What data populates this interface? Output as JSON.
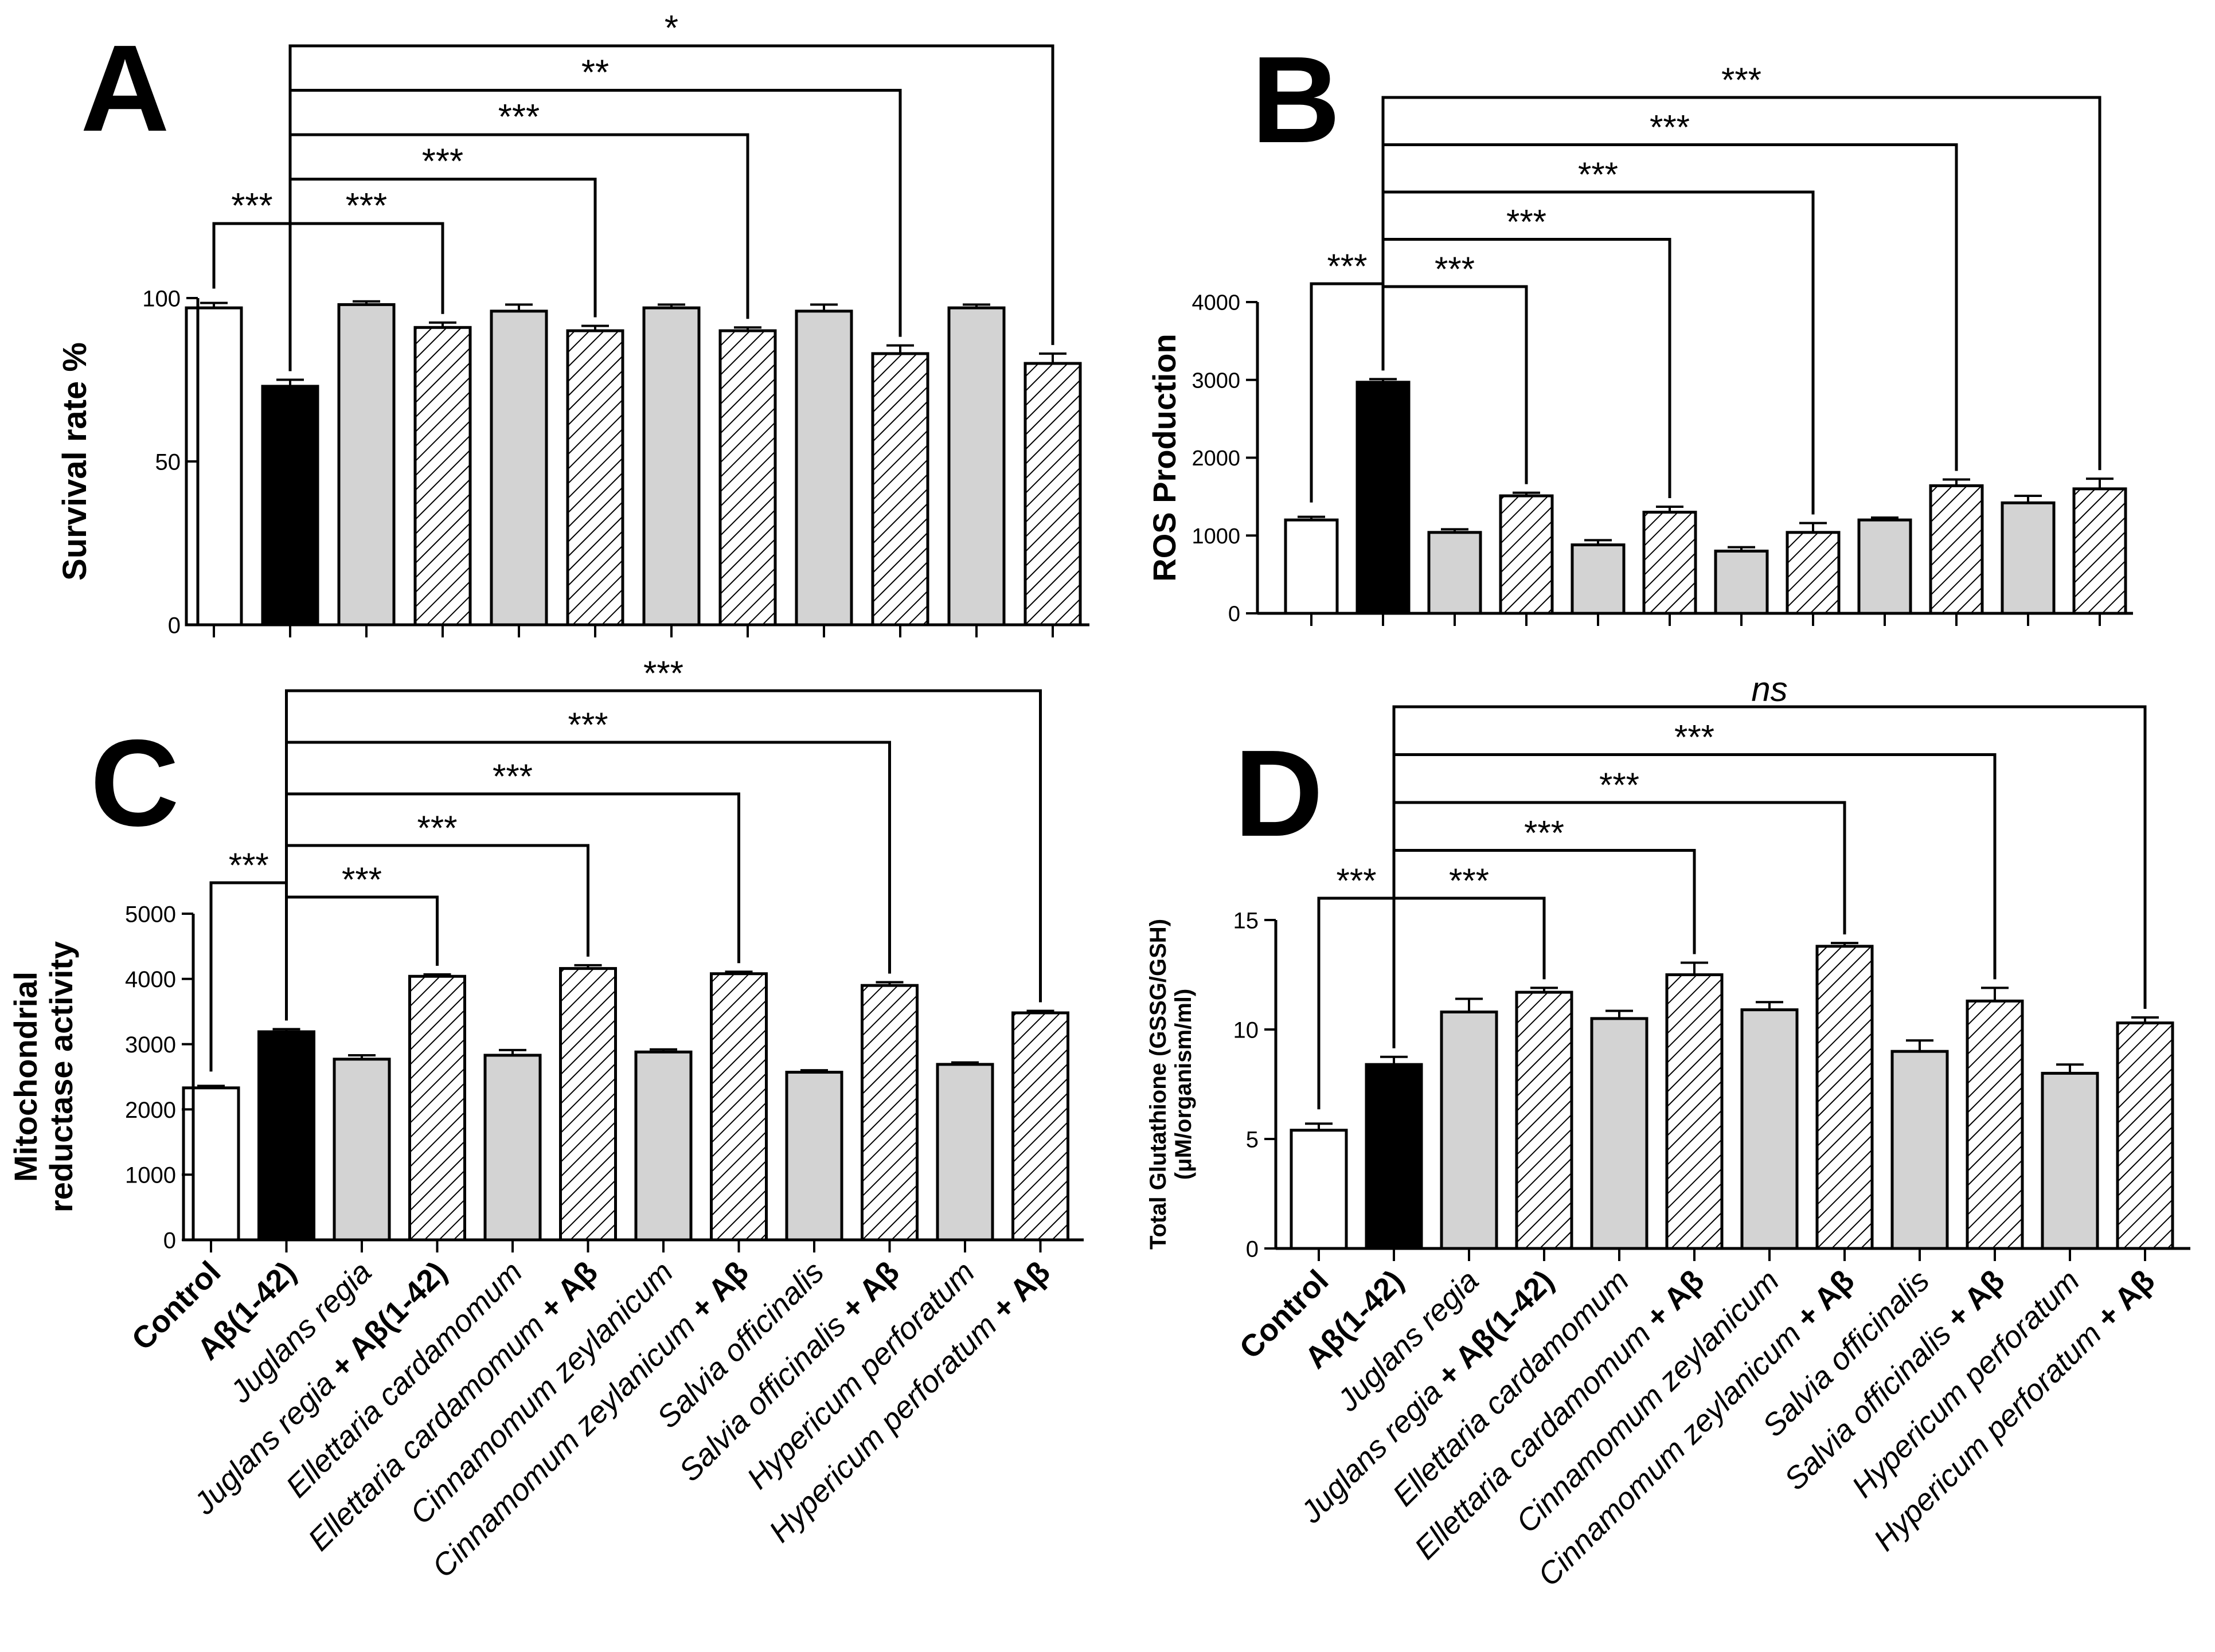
{
  "figure": {
    "categories": [
      {
        "label": "Control",
        "parts": [
          {
            "t": "Control",
            "b": true,
            "i": false
          }
        ]
      },
      {
        "label": "Aβ(1-42)",
        "parts": [
          {
            "t": "Aβ(1-42)",
            "b": true,
            "i": false
          }
        ]
      },
      {
        "label": "Juglans regia",
        "parts": [
          {
            "t": "Juglans regia",
            "b": false,
            "i": true
          }
        ]
      },
      {
        "label": "Juglans regia + Aβ(1-42)",
        "parts": [
          {
            "t": "Juglans regia",
            "b": false,
            "i": true
          },
          {
            "t": " + Aβ(1-42)",
            "b": true,
            "i": false
          }
        ]
      },
      {
        "label": "Ellettaria cardamomum",
        "parts": [
          {
            "t": "Ellettaria cardamomum",
            "b": false,
            "i": true
          }
        ]
      },
      {
        "label": "Ellettaria cardamomum + Aβ",
        "parts": [
          {
            "t": "Ellettaria cardamomum",
            "b": false,
            "i": true
          },
          {
            "t": " + Aβ",
            "b": true,
            "i": false
          }
        ]
      },
      {
        "label": "Cinnamomum zeylanicum",
        "parts": [
          {
            "t": "Cinnamomum zeylanicum",
            "b": false,
            "i": true
          }
        ]
      },
      {
        "label": "Cinnamomum zeylanicum + Aβ",
        "parts": [
          {
            "t": "Cinnamomum zeylanicum",
            "b": false,
            "i": true
          },
          {
            "t": " + Aβ",
            "b": true,
            "i": false
          }
        ]
      },
      {
        "label": "Salvia officinalis",
        "parts": [
          {
            "t": "Salvia officinalis",
            "b": false,
            "i": true
          }
        ]
      },
      {
        "label": "Salvia officinalis + Aβ",
        "parts": [
          {
            "t": "Salvia officinalis",
            "b": false,
            "i": true
          },
          {
            "t": " + Aβ",
            "b": true,
            "i": false
          }
        ]
      },
      {
        "label": "Hypericum perforatum",
        "parts": [
          {
            "t": "Hypericum perforatum",
            "b": false,
            "i": true
          }
        ]
      },
      {
        "label": "Hypericum perforatum + Aβ",
        "parts": [
          {
            "t": "Hypericum perforatum",
            "b": false,
            "i": true
          },
          {
            "t": " + Aβ",
            "b": true,
            "i": false
          }
        ]
      }
    ],
    "bar_styles": [
      "white",
      "black",
      "gray",
      "hatched",
      "gray",
      "hatched",
      "gray",
      "hatched",
      "gray",
      "hatched",
      "gray",
      "hatched"
    ],
    "colors": {
      "axis": "#000000",
      "black_bar": "#000000",
      "white_bar": "#ffffff",
      "gray_bar": "#d3d3d3"
    }
  },
  "chart_data": [
    {
      "id": "A",
      "panel_letter": "A",
      "type": "bar",
      "ylabel": "Survival rate %",
      "ylabel_lines": [
        "Survival rate %"
      ],
      "ylim": [
        0,
        100
      ],
      "yticks": [
        0,
        50,
        100
      ],
      "show_category_labels": false,
      "values": [
        97,
        73,
        98,
        91,
        96,
        90,
        97,
        90,
        96,
        83,
        97,
        80
      ],
      "errors": [
        1.5,
        2.0,
        1.0,
        1.5,
        2.0,
        1.5,
        1.0,
        1.0,
        2.0,
        2.5,
        1.0,
        3.0
      ],
      "brackets": [
        {
          "from": 0,
          "to": 1,
          "label": "***",
          "italic": false
        },
        {
          "from": 1,
          "to": 3,
          "label": "***",
          "italic": false
        },
        {
          "from": 1,
          "to": 5,
          "label": "***",
          "italic": false
        },
        {
          "from": 1,
          "to": 7,
          "label": "***",
          "italic": false
        },
        {
          "from": 1,
          "to": 9,
          "label": "**",
          "italic": false
        },
        {
          "from": 1,
          "to": 11,
          "label": "*",
          "italic": false
        }
      ]
    },
    {
      "id": "B",
      "panel_letter": "B",
      "type": "bar",
      "ylabel": "ROS Production",
      "ylabel_lines": [
        "ROS Production"
      ],
      "ylim": [
        0,
        4000
      ],
      "yticks": [
        0,
        1000,
        2000,
        3000,
        4000
      ],
      "show_category_labels": false,
      "values": [
        1200,
        2970,
        1040,
        1510,
        880,
        1300,
        800,
        1040,
        1200,
        1640,
        1420,
        1600
      ],
      "errors": [
        40,
        40,
        40,
        40,
        60,
        70,
        50,
        120,
        30,
        80,
        90,
        130
      ],
      "brackets": [
        {
          "from": 0,
          "to": 1,
          "label": "***",
          "italic": false
        },
        {
          "from": 1,
          "to": 3,
          "label": "***",
          "italic": false
        },
        {
          "from": 1,
          "to": 5,
          "label": "***",
          "italic": false
        },
        {
          "from": 1,
          "to": 7,
          "label": "***",
          "italic": false
        },
        {
          "from": 1,
          "to": 9,
          "label": "***",
          "italic": false
        },
        {
          "from": 1,
          "to": 11,
          "label": "***",
          "italic": false
        }
      ]
    },
    {
      "id": "C",
      "panel_letter": "C",
      "type": "bar",
      "ylabel": "Mitochondrial reductase activity",
      "ylabel_lines": [
        "Mitochondrial",
        "reductase activity"
      ],
      "ylim": [
        0,
        5000
      ],
      "yticks": [
        0,
        1000,
        2000,
        3000,
        4000,
        5000
      ],
      "show_category_labels": true,
      "values": [
        2330,
        3190,
        2770,
        4040,
        2830,
        4160,
        2880,
        4080,
        2570,
        3900,
        2690,
        3480
      ],
      "errors": [
        30,
        40,
        60,
        30,
        80,
        50,
        40,
        30,
        30,
        50,
        30,
        30
      ],
      "brackets": [
        {
          "from": 0,
          "to": 1,
          "label": "***",
          "italic": false
        },
        {
          "from": 1,
          "to": 3,
          "label": "***",
          "italic": false
        },
        {
          "from": 1,
          "to": 5,
          "label": "***",
          "italic": false
        },
        {
          "from": 1,
          "to": 7,
          "label": "***",
          "italic": false
        },
        {
          "from": 1,
          "to": 9,
          "label": "***",
          "italic": false
        },
        {
          "from": 1,
          "to": 11,
          "label": "***",
          "italic": false
        }
      ]
    },
    {
      "id": "D",
      "panel_letter": "D",
      "type": "bar",
      "ylabel": "Total Glutathione (GSSG/GSH) (μM/organism/ml)",
      "ylabel_lines": [
        "Total Glutathione (GSSG/GSH)",
        "(μM/organism/ml)"
      ],
      "ylim": [
        0,
        15
      ],
      "yticks": [
        0,
        5,
        10,
        15
      ],
      "show_category_labels": true,
      "values": [
        5.4,
        8.4,
        10.8,
        11.7,
        10.5,
        12.5,
        10.9,
        13.8,
        9.0,
        11.3,
        8.0,
        10.3
      ],
      "errors": [
        0.3,
        0.35,
        0.6,
        0.2,
        0.35,
        0.55,
        0.35,
        0.15,
        0.5,
        0.6,
        0.4,
        0.25
      ],
      "brackets": [
        {
          "from": 0,
          "to": 1,
          "label": "***",
          "italic": false
        },
        {
          "from": 1,
          "to": 3,
          "label": "***",
          "italic": false
        },
        {
          "from": 1,
          "to": 5,
          "label": "***",
          "italic": false
        },
        {
          "from": 1,
          "to": 7,
          "label": "***",
          "italic": false
        },
        {
          "from": 1,
          "to": 9,
          "label": "***",
          "italic": false
        },
        {
          "from": 1,
          "to": 11,
          "label": "ns",
          "italic": true
        }
      ]
    }
  ]
}
